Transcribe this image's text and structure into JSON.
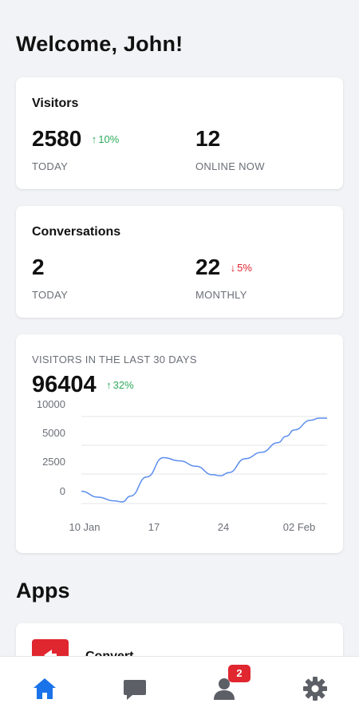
{
  "header": {
    "title": "Welcome, John!"
  },
  "visitors_card": {
    "title": "Visitors",
    "today": {
      "value": "2580",
      "change": "10%",
      "direction": "up",
      "label": "TODAY"
    },
    "online": {
      "value": "12",
      "label": "ONLINE NOW"
    }
  },
  "conversations_card": {
    "title": "Conversations",
    "today": {
      "value": "2",
      "label": "TODAY"
    },
    "monthly": {
      "value": "22",
      "change": "5%",
      "direction": "down",
      "label": "MONTHLY"
    }
  },
  "chart_card": {
    "heading": "VISITORS IN THE LAST 30 DAYS",
    "total": "96404",
    "change": "32%",
    "direction": "up"
  },
  "chart_data": {
    "type": "line",
    "title": "VISITORS IN THE LAST 30 DAYS",
    "xlabel": "",
    "ylabel": "",
    "x_tick_labels": [
      "10 Jan",
      "17",
      "24",
      "02 Feb"
    ],
    "y_tick_labels": [
      "10000",
      "5000",
      "2500",
      "0"
    ],
    "grid": true,
    "series": [
      {
        "color": "#5b8def",
        "points": [
          {
            "x": 0,
            "y": 1150
          },
          {
            "x": 2,
            "y": 600
          },
          {
            "x": 4,
            "y": 250
          },
          {
            "x": 5,
            "y": 150
          },
          {
            "x": 6,
            "y": 700
          },
          {
            "x": 8,
            "y": 2500
          },
          {
            "x": 10,
            "y": 4300
          },
          {
            "x": 12,
            "y": 4000
          },
          {
            "x": 14,
            "y": 3500
          },
          {
            "x": 16,
            "y": 2700
          },
          {
            "x": 17,
            "y": 2600
          },
          {
            "x": 18,
            "y": 2900
          },
          {
            "x": 20,
            "y": 4200
          },
          {
            "x": 22,
            "y": 4800
          },
          {
            "x": 24,
            "y": 5700
          },
          {
            "x": 25,
            "y": 6300
          },
          {
            "x": 26,
            "y": 6900
          },
          {
            "x": 28,
            "y": 7800
          },
          {
            "x": 29,
            "y": 8000
          },
          {
            "x": 30,
            "y": 8000
          }
        ]
      }
    ]
  },
  "apps": {
    "title": "Apps",
    "items": [
      {
        "name": "Convert",
        "icon": "convert-icon",
        "color": "#e0262f"
      }
    ]
  },
  "tabbar": {
    "items": [
      {
        "name": "home",
        "icon": "home-icon",
        "active": true,
        "color": "#1a73e8"
      },
      {
        "name": "conversations",
        "icon": "chat-icon",
        "active": false
      },
      {
        "name": "users",
        "icon": "user-icon",
        "active": false,
        "badge": "2"
      },
      {
        "name": "settings",
        "icon": "gear-icon",
        "active": false
      }
    ]
  },
  "colors": {
    "up": "#2eaa5c",
    "down": "#e0262f",
    "line": "#5b8def",
    "accent": "#1a73e8"
  }
}
